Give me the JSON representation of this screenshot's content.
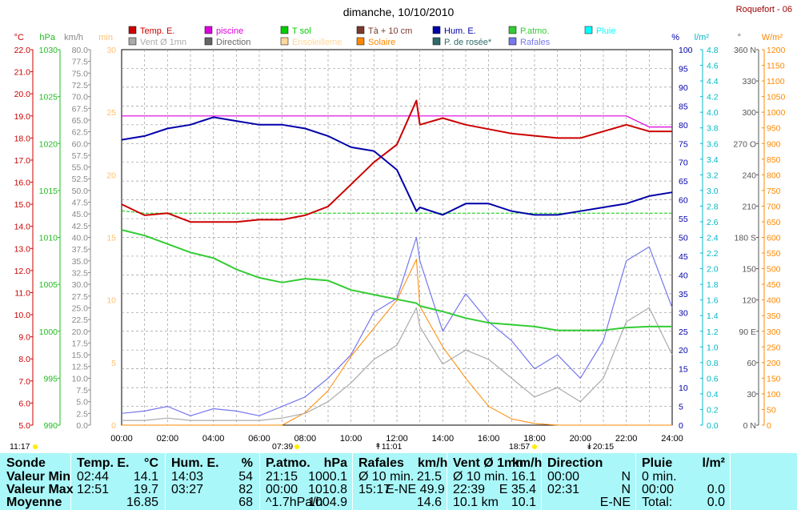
{
  "title": "dimanche, 10/10/2010",
  "station": "Roquefort - 06",
  "colors": {
    "temp": "#cc0000",
    "piscine": "#dd00dd",
    "tsol": "#00cc00",
    "ta10": "#7a3b2e",
    "hum": "#0000aa",
    "patmo": "#33cc33",
    "pluie": "#00ffff",
    "vent": "#aaaaaa",
    "direction": "#666666",
    "ensoleillement": "#ffd79a",
    "solaire": "#ff8800",
    "rosee": "#2f6b6b",
    "rafales": "#7777ee"
  },
  "legend": [
    {
      "label": "Temp. E.",
      "color": "#cc0000"
    },
    {
      "label": "piscine",
      "color": "#dd00dd"
    },
    {
      "label": "T sol",
      "color": "#00cc00"
    },
    {
      "label": "Tà + 10 cm",
      "color": "#7a3b2e"
    },
    {
      "label": "Hum. E.",
      "color": "#0000aa"
    },
    {
      "label": "P.atmo.",
      "color": "#33cc33"
    },
    {
      "label": "Pluie",
      "color": "#00ffff"
    },
    {
      "label": "Vent Ø 1mn",
      "color": "#aaaaaa"
    },
    {
      "label": "Direction",
      "color": "#666666"
    },
    {
      "label": "Ensoleilleme",
      "color": "#ffd79a"
    },
    {
      "label": "Solaire",
      "color": "#ff8800"
    },
    {
      "label": "P. de rosée*",
      "color": "#2f6b6b"
    },
    {
      "label": "Rafales",
      "color": "#7777ee"
    }
  ],
  "axis_units": {
    "c": "°C",
    "hpa": "hPa",
    "kmh": "km/h",
    "min": "min",
    "pct": "%",
    "lm2": "l/m²",
    "deg": "°",
    "wm2": "W/m²"
  },
  "ticks": {
    "celsius": [
      "5.0",
      "6.0",
      "7.0",
      "8.0",
      "9.0",
      "10.0",
      "11.0",
      "12.0",
      "13.0",
      "14.0",
      "15.0",
      "16.0",
      "17.0",
      "18.0",
      "19.0",
      "20.0",
      "21.0",
      "22.0"
    ],
    "hpa": [
      "990",
      "995",
      "1000",
      "1005",
      "1010",
      "1015",
      "1020",
      "1025",
      "1030"
    ],
    "kmh": [
      "0.0",
      "2.5",
      "5.0",
      "7.5",
      "10.0",
      "12.5",
      "15.0",
      "17.5",
      "20.0",
      "22.5",
      "25.0",
      "27.5",
      "30.0",
      "32.5",
      "35.0",
      "37.5",
      "40.0",
      "42.5",
      "45.0",
      "47.5",
      "50.0",
      "52.5",
      "55.0",
      "57.5",
      "60.0",
      "62.5",
      "65.0",
      "67.5",
      "70.0",
      "72.5",
      "75.0",
      "77.5",
      "80.0"
    ],
    "minutes": [
      "0",
      "5",
      "10",
      "15",
      "20",
      "25",
      "30"
    ],
    "pct": [
      "0",
      "5",
      "10",
      "15",
      "20",
      "25",
      "30",
      "35",
      "40",
      "45",
      "50",
      "55",
      "60",
      "65",
      "70",
      "75",
      "80",
      "85",
      "90",
      "95",
      "100"
    ],
    "lm2": [
      "0.0",
      "0.2",
      "0.4",
      "0.6",
      "0.8",
      "1.0",
      "1.2",
      "1.4",
      "1.6",
      "1.8",
      "2.0",
      "2.2",
      "2.4",
      "2.6",
      "2.8",
      "3.0",
      "3.2",
      "3.4",
      "3.6",
      "3.8",
      "4.0",
      "4.2",
      "4.4",
      "4.6",
      "4.8"
    ],
    "deg": [
      "0 N",
      "30",
      "60",
      "90 E",
      "120",
      "150",
      "180 S",
      "210",
      "240",
      "270 O",
      "300",
      "330",
      "360 N"
    ],
    "wm2": [
      "0",
      "50",
      "100",
      "150",
      "200",
      "250",
      "300",
      "350",
      "400",
      "450",
      "500",
      "550",
      "600",
      "650",
      "700",
      "750",
      "800",
      "850",
      "900",
      "950",
      "1000",
      "1050",
      "1100",
      "1150",
      "1200"
    ],
    "hours": [
      "00:00",
      "02:00",
      "04:00",
      "06:00",
      "08:00",
      "10:00",
      "12:00",
      "14:00",
      "16:00",
      "18:00",
      "20:00",
      "22:00",
      "24:00"
    ]
  },
  "events": {
    "moonrise": "11:17",
    "sunrise": "07:39",
    "noon": "11:01",
    "sunset": "18:57",
    "moonset": "20:15"
  },
  "chart_data": {
    "type": "line",
    "title": "dimanche, 10/10/2010",
    "x_range": [
      "00:00",
      "24:00"
    ],
    "y_ranges": {
      "celsius": [
        5,
        22
      ],
      "hpa": [
        990,
        1030
      ],
      "kmh": [
        0,
        80
      ],
      "pct": [
        0,
        100
      ],
      "wm2": [
        0,
        1200
      ]
    },
    "x_hours": [
      0,
      1,
      2,
      3,
      4,
      5,
      6,
      7,
      8,
      9,
      10,
      11,
      12,
      12.85,
      13,
      14,
      15,
      16,
      17,
      18,
      19,
      20,
      21,
      22,
      23,
      24
    ],
    "series": [
      {
        "name": "Temp. E.",
        "unit": "°C",
        "values": [
          15.0,
          14.5,
          14.6,
          14.2,
          14.2,
          14.2,
          14.3,
          14.3,
          14.5,
          14.9,
          15.9,
          16.9,
          17.7,
          19.7,
          18.6,
          18.9,
          18.6,
          18.4,
          18.2,
          18.1,
          18.0,
          18.0,
          18.3,
          18.6,
          18.3,
          18.3
        ]
      },
      {
        "name": "piscine",
        "unit": "°C",
        "values": [
          19.0,
          19.0,
          19.0,
          19.0,
          19.0,
          19.0,
          19.0,
          19.0,
          19.0,
          19.0,
          19.0,
          19.0,
          19.0,
          19.0,
          19.0,
          19.0,
          19.0,
          19.0,
          19.0,
          19.0,
          19.0,
          19.0,
          19.0,
          19.0,
          18.5,
          18.5
        ]
      },
      {
        "name": "T sol",
        "unit": "°C",
        "values": [
          14.7,
          14.6,
          14.6,
          14.6,
          14.6,
          14.6,
          14.6,
          14.6,
          14.6,
          14.6,
          14.6,
          14.6,
          14.6,
          14.6,
          14.6,
          14.6,
          14.6,
          14.6,
          14.6,
          14.6,
          14.6,
          14.6,
          14.6,
          14.6,
          14.6,
          14.6
        ]
      },
      {
        "name": "Hum. E.",
        "unit": "%",
        "values": [
          76,
          77,
          79,
          80,
          82,
          81,
          80,
          80,
          79,
          77,
          74,
          73,
          68,
          57,
          58,
          56,
          59,
          59,
          57,
          56,
          56,
          57,
          58,
          59,
          61,
          62
        ]
      },
      {
        "name": "P.atmo.",
        "unit": "hPa",
        "values": [
          1010.8,
          1010.2,
          1009.3,
          1008.4,
          1007.8,
          1006.6,
          1005.7,
          1005.2,
          1005.6,
          1005.4,
          1004.4,
          1003.9,
          1003.4,
          1003.0,
          1002.7,
          1002.1,
          1001.4,
          1000.9,
          1000.7,
          1000.5,
          1000.1,
          1000.1,
          1000.1,
          1000.4,
          1000.5,
          1000.5
        ]
      },
      {
        "name": "Rafales",
        "unit": "km/h",
        "values": [
          2.5,
          3,
          4,
          2,
          3.5,
          3,
          2,
          4,
          6,
          10,
          15,
          24,
          27,
          40,
          35,
          20,
          28,
          22,
          18,
          12,
          15,
          10,
          18,
          35,
          38,
          25
        ]
      },
      {
        "name": "Vent Ø 1mn",
        "unit": "km/h",
        "values": [
          1,
          1,
          1.5,
          1,
          1,
          1,
          1,
          1.5,
          2.5,
          5,
          9,
          14,
          17,
          25,
          21,
          13,
          16,
          14,
          10,
          6,
          8,
          5,
          10,
          22,
          25,
          15
        ]
      },
      {
        "name": "Solaire",
        "unit": "W/m²",
        "values": [
          0,
          0,
          0,
          0,
          0,
          0,
          0,
          0,
          40,
          110,
          220,
          310,
          400,
          530,
          380,
          250,
          150,
          60,
          20,
          5,
          0,
          0,
          0,
          0,
          0,
          0
        ]
      }
    ]
  },
  "table": {
    "columns": [
      {
        "name": "Sonde",
        "unit": ""
      },
      {
        "name": "Temp. E.",
        "unit": "°C"
      },
      {
        "name": "Hum. E.",
        "unit": "%"
      },
      {
        "name": "P.atmo.",
        "unit": "hPa"
      },
      {
        "name": "Rafales",
        "unit": "km/h"
      },
      {
        "name": "Vent Ø 1mn",
        "unit": "km/h"
      },
      {
        "name": "Direction",
        "unit": ""
      },
      {
        "name": "Pluie",
        "unit": "l/m²"
      }
    ],
    "rows": [
      {
        "label": "Valeur Min",
        "cells": [
          [
            "02:44",
            "14.1"
          ],
          [
            "14:03",
            "54"
          ],
          [
            "21:15",
            "1000.1"
          ],
          [
            "Ø 10 min.",
            "21.5"
          ],
          [
            "Ø 10 min.",
            "16.1"
          ],
          [
            "00:00",
            "N"
          ],
          [
            "0 min.",
            ""
          ]
        ]
      },
      {
        "label": "Valeur Max",
        "cells": [
          [
            "12:51",
            "19.7"
          ],
          [
            "03:27",
            "82"
          ],
          [
            "00:00",
            "1010.8"
          ],
          [
            "15:17",
            "E-NE 49.9"
          ],
          [
            "22:39",
            "E 35.4"
          ],
          [
            "02:31",
            "N"
          ],
          [
            "00:00",
            "0.0"
          ]
        ]
      },
      {
        "label": "Moyenne",
        "cells": [
          [
            "",
            "16.85"
          ],
          [
            "",
            "68"
          ],
          [
            "^1.7hPa/h",
            "1004.9"
          ],
          [
            "",
            "14.6"
          ],
          [
            "10.1 km",
            "10.1"
          ],
          [
            "",
            "E-NE"
          ],
          [
            "Total:",
            "0.0"
          ]
        ]
      }
    ]
  }
}
